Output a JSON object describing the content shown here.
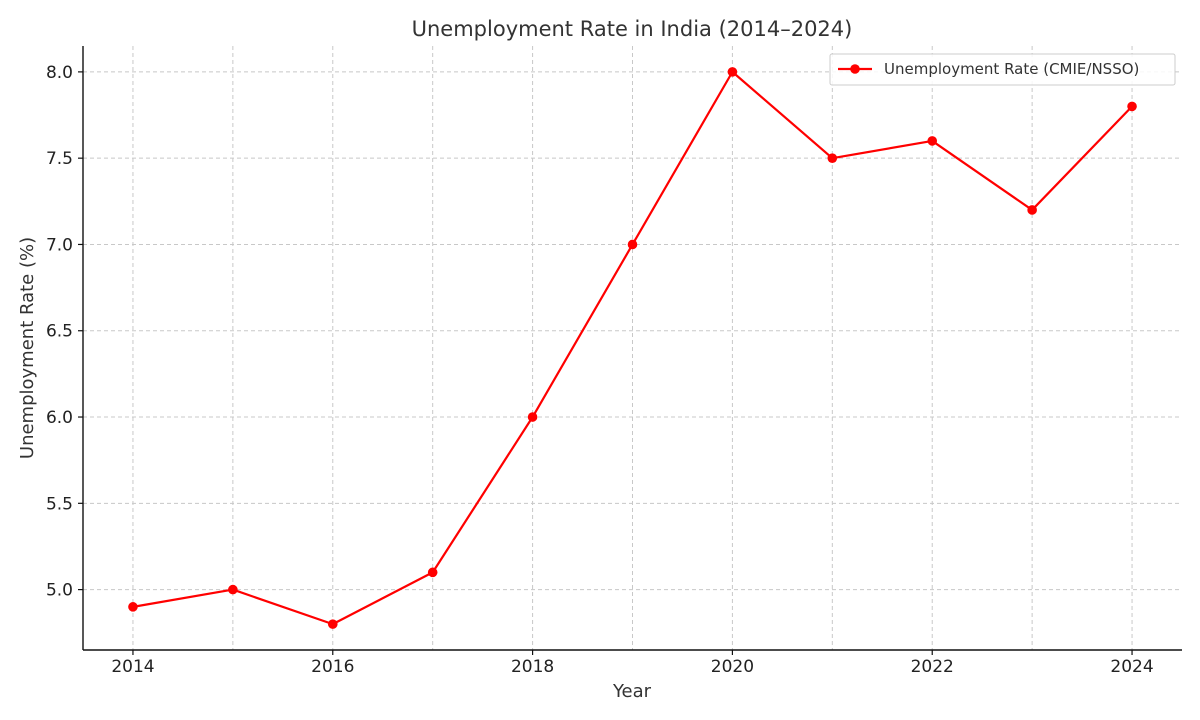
{
  "chart_data": {
    "type": "line",
    "title": "Unemployment Rate in India (2014–2024)",
    "xlabel": "Year",
    "ylabel": "Unemployment Rate (%)",
    "x": [
      2014,
      2015,
      2016,
      2017,
      2018,
      2019,
      2020,
      2021,
      2022,
      2023,
      2024
    ],
    "series": [
      {
        "name": "Unemployment Rate (CMIE/NSSO)",
        "values": [
          4.9,
          5.0,
          4.8,
          5.1,
          6.0,
          7.0,
          8.0,
          7.5,
          7.6,
          7.2,
          7.8
        ],
        "color": "#ff0000",
        "marker": "circle"
      }
    ],
    "xlim": [
      2013.5,
      2024.5
    ],
    "ylim": [
      4.65,
      8.15
    ],
    "xticks": [
      2014,
      2016,
      2018,
      2020,
      2022,
      2024
    ],
    "xtick_labels": [
      "2014",
      "2016",
      "2018",
      "2020",
      "2022",
      "2024"
    ],
    "yticks": [
      5.0,
      5.5,
      6.0,
      6.5,
      7.0,
      7.5,
      8.0
    ],
    "ytick_labels": [
      "5.0",
      "5.5",
      "6.0",
      "6.5",
      "7.0",
      "7.5",
      "8.0"
    ],
    "x_gridlines": [
      2014,
      2015,
      2016,
      2017,
      2018,
      2019,
      2020,
      2021,
      2022,
      2023,
      2024
    ],
    "grid": true,
    "grid_style": "dashed",
    "legend": "top-right"
  }
}
